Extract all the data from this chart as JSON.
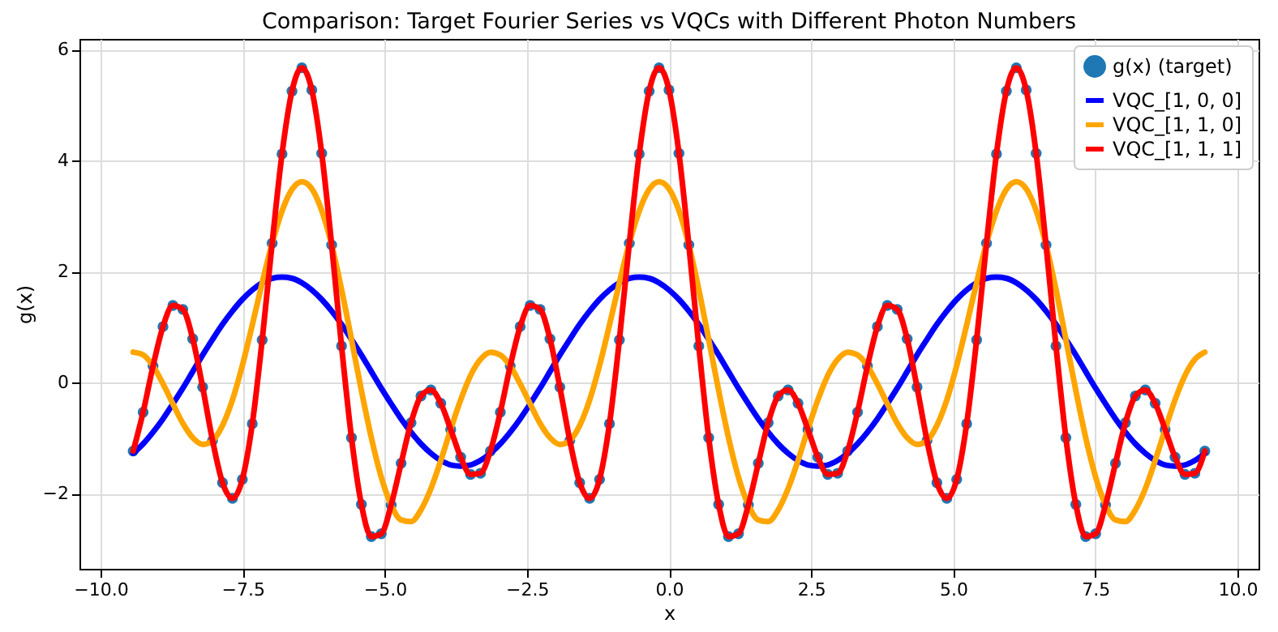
{
  "chart_data": {
    "type": "line",
    "title": "Comparison: Target Fourier Series vs VQCs with Different Photon Numbers",
    "xlabel": "x",
    "ylabel": "g(x)",
    "xlim": [
      -10.37,
      10.37
    ],
    "ylim": [
      -3.35,
      6.19
    ],
    "xticks": [
      {
        "value": -10,
        "label": "−10.0"
      },
      {
        "value": -7.5,
        "label": "−7.5"
      },
      {
        "value": -5,
        "label": "−5.0"
      },
      {
        "value": -2.5,
        "label": "−2.5"
      },
      {
        "value": 0,
        "label": "0.0"
      },
      {
        "value": 2.5,
        "label": "2.5"
      },
      {
        "value": 5,
        "label": "5.0"
      },
      {
        "value": 7.5,
        "label": "7.5"
      },
      {
        "value": 10,
        "label": "10.0"
      }
    ],
    "yticks": [
      {
        "value": -2,
        "label": "−2"
      },
      0,
      2,
      4,
      6
    ],
    "grid": true,
    "legend": "top right",
    "x": [
      -9.425,
      -9.25,
      -9.076,
      -8.901,
      -8.727,
      -8.552,
      -8.378,
      -8.203,
      -8.029,
      -7.854,
      -7.679,
      -7.505,
      -7.33,
      -7.156,
      -6.981,
      -6.807,
      -6.632,
      -6.458,
      -6.283,
      -6.109,
      -5.934,
      -5.76,
      -5.585,
      -5.411,
      -5.236,
      -5.061,
      -4.887,
      -4.712,
      -4.538,
      -4.363,
      -4.189,
      -4.014,
      -3.84,
      -3.665,
      -3.491,
      -3.316,
      -3.142,
      -2.967,
      -2.793,
      -2.618,
      -2.443,
      -2.269,
      -2.094,
      -1.92,
      -1.745,
      -1.571,
      -1.396,
      -1.222,
      -1.047,
      -0.873,
      -0.698,
      -0.524,
      -0.349,
      -0.175,
      0,
      0.175,
      0.349,
      0.524,
      0.698,
      0.873,
      1.047,
      1.222,
      1.396,
      1.571,
      1.745,
      1.92,
      2.094,
      2.269,
      2.443,
      2.618,
      2.793,
      2.967,
      3.142,
      3.316,
      3.491,
      3.665,
      3.84,
      4.014,
      4.189,
      4.363,
      4.538,
      4.712,
      4.887,
      5.061,
      5.236,
      5.411,
      5.585,
      5.76,
      5.934,
      6.109,
      6.283,
      6.458,
      6.632,
      6.807,
      6.981,
      7.156,
      7.33,
      7.505,
      7.679,
      7.854,
      8.029,
      8.203,
      8.378,
      8.552,
      8.727,
      8.901,
      9.076,
      9.25,
      9.425
    ],
    "series": [
      {
        "name": "g(x) (target)",
        "type": "scatter",
        "marker": "circle",
        "color": "#1f77b4",
        "values": [
          -1.23,
          -0.53,
          0.3,
          1.01,
          1.39,
          1.32,
          0.79,
          -0.08,
          -1.04,
          -1.8,
          -2.08,
          -1.74,
          -0.74,
          0.77,
          2.51,
          4.12,
          5.25,
          5.67,
          5.27,
          4.13,
          2.48,
          0.66,
          -0.99,
          -2.19,
          -2.77,
          -2.72,
          -2.2,
          -1.45,
          -0.72,
          -0.24,
          -0.13,
          -0.37,
          -0.84,
          -1.34,
          -1.65,
          -1.63,
          -1.23,
          -0.53,
          0.3,
          1.01,
          1.39,
          1.32,
          0.79,
          -0.08,
          -1.04,
          -1.8,
          -2.08,
          -1.74,
          -0.74,
          0.77,
          2.51,
          4.12,
          5.25,
          5.67,
          5.27,
          4.13,
          2.48,
          0.66,
          -0.99,
          -2.19,
          -2.77,
          -2.72,
          -2.2,
          -1.45,
          -0.72,
          -0.24,
          -0.13,
          -0.37,
          -0.84,
          -1.34,
          -1.65,
          -1.63,
          -1.23,
          -0.53,
          0.3,
          1.01,
          1.39,
          1.32,
          0.79,
          -0.08,
          -1.04,
          -1.8,
          -2.08,
          -1.74,
          -0.74,
          0.77,
          2.51,
          4.12,
          5.25,
          5.67,
          5.27,
          4.13,
          2.48,
          0.66,
          -0.99,
          -2.19,
          -2.77,
          -2.72,
          -2.2,
          -1.45,
          -0.72,
          -0.24,
          -0.13,
          -0.37,
          -0.84,
          -1.34,
          -1.65,
          -1.63,
          -1.23
        ]
      },
      {
        "name": "VQC_[1, 0, 0]",
        "marker": "none",
        "color": "#0000ff",
        "values": [
          -1.27,
          -1.1,
          -0.89,
          -0.65,
          -0.38,
          -0.1,
          0.2,
          0.5,
          0.78,
          1.05,
          1.29,
          1.5,
          1.67,
          1.8,
          1.88,
          1.9,
          1.88,
          1.8,
          1.67,
          1.5,
          1.29,
          1.05,
          0.78,
          0.5,
          0.2,
          -0.1,
          -0.38,
          -0.65,
          -0.89,
          -1.1,
          -1.27,
          -1.4,
          -1.48,
          -1.5,
          -1.48,
          -1.4,
          -1.27,
          -1.1,
          -0.89,
          -0.65,
          -0.38,
          -0.1,
          0.2,
          0.5,
          0.78,
          1.05,
          1.29,
          1.5,
          1.67,
          1.8,
          1.88,
          1.9,
          1.88,
          1.8,
          1.67,
          1.5,
          1.29,
          1.05,
          0.78,
          0.5,
          0.2,
          -0.1,
          -0.38,
          -0.65,
          -0.89,
          -1.1,
          -1.27,
          -1.4,
          -1.48,
          -1.5,
          -1.48,
          -1.4,
          -1.27,
          -1.1,
          -0.89,
          -0.65,
          -0.38,
          -0.1,
          0.2,
          0.5,
          0.78,
          1.05,
          1.29,
          1.5,
          1.67,
          1.8,
          1.88,
          1.9,
          1.88,
          1.8,
          1.67,
          1.5,
          1.29,
          1.05,
          0.78,
          0.5,
          0.2,
          -0.1,
          -0.38,
          -0.65,
          -0.89,
          -1.1,
          -1.27,
          -1.4,
          -1.48,
          -1.5,
          -1.48,
          -1.4,
          -1.27
        ]
      },
      {
        "name": "VQC_[1, 1, 0]",
        "marker": "none",
        "color": "#ffa500",
        "values": [
          0.55,
          0.5,
          0.3,
          -0.02,
          -0.38,
          -0.73,
          -0.99,
          -1.11,
          -1.04,
          -0.77,
          -0.31,
          0.31,
          1.04,
          1.8,
          2.51,
          3.09,
          3.48,
          3.62,
          3.49,
          3.1,
          2.48,
          1.68,
          0.78,
          -0.14,
          -0.99,
          -1.7,
          -2.2,
          -2.47,
          -2.5,
          -2.29,
          -1.91,
          -1.4,
          -0.84,
          -0.31,
          0.13,
          0.42,
          0.55,
          0.5,
          0.3,
          -0.02,
          -0.38,
          -0.73,
          -0.99,
          -1.11,
          -1.04,
          -0.77,
          -0.31,
          0.31,
          1.04,
          1.8,
          2.51,
          3.09,
          3.48,
          3.62,
          3.49,
          3.1,
          2.48,
          1.68,
          0.78,
          -0.14,
          -0.99,
          -1.7,
          -2.2,
          -2.47,
          -2.5,
          -2.29,
          -1.91,
          -1.4,
          -0.84,
          -0.31,
          0.13,
          0.42,
          0.55,
          0.5,
          0.3,
          -0.02,
          -0.38,
          -0.73,
          -0.99,
          -1.11,
          -1.04,
          -0.77,
          -0.31,
          0.31,
          1.04,
          1.8,
          2.51,
          3.09,
          3.48,
          3.62,
          3.49,
          3.1,
          2.48,
          1.68,
          0.78,
          -0.14,
          -0.99,
          -1.7,
          -2.2,
          -2.47,
          -2.5,
          -2.29,
          -1.91,
          -1.4,
          -0.84,
          -0.31,
          0.13,
          0.42,
          0.55
        ]
      },
      {
        "name": "VQC_[1, 1, 1]",
        "marker": "none",
        "color": "#ff0000",
        "values": [
          -1.23,
          -0.53,
          0.3,
          1.01,
          1.39,
          1.32,
          0.79,
          -0.08,
          -1.04,
          -1.8,
          -2.08,
          -1.74,
          -0.74,
          0.77,
          2.51,
          4.12,
          5.25,
          5.67,
          5.27,
          4.13,
          2.48,
          0.66,
          -0.99,
          -2.19,
          -2.77,
          -2.72,
          -2.2,
          -1.45,
          -0.72,
          -0.24,
          -0.13,
          -0.37,
          -0.84,
          -1.34,
          -1.65,
          -1.63,
          -1.23,
          -0.53,
          0.3,
          1.01,
          1.39,
          1.32,
          0.79,
          -0.08,
          -1.04,
          -1.8,
          -2.08,
          -1.74,
          -0.74,
          0.77,
          2.51,
          4.12,
          5.25,
          5.67,
          5.27,
          4.13,
          2.48,
          0.66,
          -0.99,
          -2.19,
          -2.77,
          -2.72,
          -2.2,
          -1.45,
          -0.72,
          -0.24,
          -0.13,
          -0.37,
          -0.84,
          -1.34,
          -1.65,
          -1.63,
          -1.23,
          -0.53,
          0.3,
          1.01,
          1.39,
          1.32,
          0.79,
          -0.08,
          -1.04,
          -1.8,
          -2.08,
          -1.74,
          -0.74,
          0.77,
          2.51,
          4.12,
          5.25,
          5.67,
          5.27,
          4.13,
          2.48,
          0.66,
          -0.99,
          -2.19,
          -2.77,
          -2.72,
          -2.2,
          -1.45,
          -0.72,
          -0.24,
          -0.13,
          -0.37,
          -0.84,
          -1.34,
          -1.65,
          -1.63,
          -1.23
        ]
      }
    ]
  }
}
